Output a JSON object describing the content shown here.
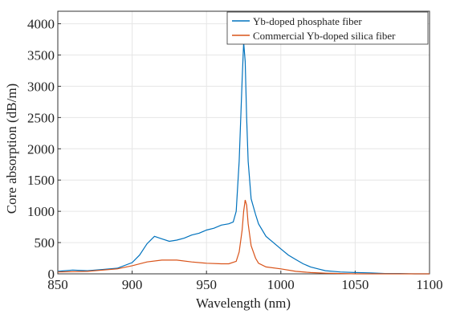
{
  "chart_data": {
    "type": "line",
    "xlabel": "Wavelength (nm)",
    "ylabel": "Core absorption (dB/m)",
    "xlim": [
      850,
      1100
    ],
    "xticks": [
      850,
      900,
      950,
      1000,
      1050,
      1100
    ],
    "ylim": [
      0,
      4200
    ],
    "yticks": [
      0,
      500,
      1000,
      1500,
      2000,
      2500,
      3000,
      3500,
      4000
    ],
    "grid": true,
    "legend": "top-right",
    "series": [
      {
        "name": "Yb-doped phosphate fiber",
        "color": "#0072bd",
        "x": [
          850,
          860,
          870,
          880,
          890,
          900,
          905,
          910,
          915,
          920,
          925,
          930,
          935,
          940,
          945,
          950,
          955,
          960,
          965,
          968,
          970,
          972,
          974,
          975,
          976,
          977,
          978,
          980,
          983,
          985,
          990,
          995,
          1000,
          1005,
          1010,
          1015,
          1020,
          1025,
          1030,
          1040,
          1050,
          1060,
          1070,
          1080,
          1090,
          1100
        ],
        "values": [
          40,
          60,
          50,
          70,
          90,
          180,
          300,
          480,
          600,
          560,
          520,
          540,
          570,
          620,
          650,
          700,
          730,
          780,
          800,
          830,
          1000,
          1800,
          3100,
          3700,
          3400,
          2500,
          1800,
          1200,
          950,
          800,
          600,
          500,
          400,
          300,
          230,
          160,
          110,
          80,
          50,
          30,
          20,
          15,
          5,
          5,
          0,
          0
        ]
      },
      {
        "name": "Commercial Yb-doped silica fiber",
        "color": "#d95319",
        "x": [
          850,
          870,
          890,
          900,
          910,
          920,
          930,
          940,
          950,
          960,
          965,
          970,
          972,
          974,
          975,
          976,
          977,
          978,
          980,
          983,
          985,
          990,
          1000,
          1010,
          1020,
          1030,
          1050,
          1100
        ],
        "values": [
          30,
          40,
          80,
          130,
          190,
          220,
          220,
          190,
          170,
          160,
          160,
          200,
          350,
          700,
          1000,
          1180,
          1100,
          800,
          450,
          250,
          170,
          110,
          80,
          40,
          20,
          10,
          0,
          0
        ]
      }
    ]
  }
}
